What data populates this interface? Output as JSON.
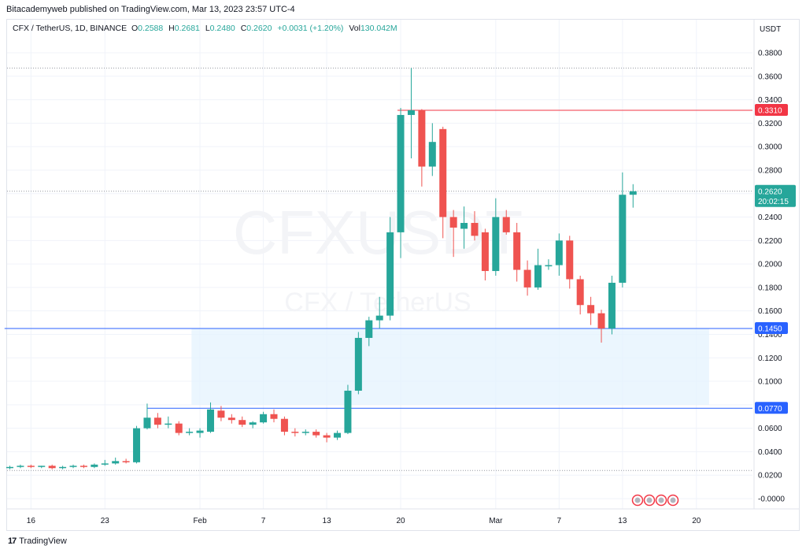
{
  "header": {
    "publisher": "Bitacademyweb published on TradingView.com, Mar 13, 2023 23:57 UTC-4"
  },
  "legend": {
    "symbol": "CFX / TetherUS, 1D, BINANCE",
    "open_label": "O",
    "open": "0.2588",
    "high_label": "H",
    "high": "0.2681",
    "low_label": "L",
    "low": "0.2480",
    "close_label": "C",
    "close": "0.2620",
    "change": "+0.0031 (+1.20%)",
    "volume_label": "Vol",
    "volume": "130.042M"
  },
  "watermark": {
    "ticker": "CFXUSDT",
    "name": "CFX / TetherUS"
  },
  "footer": {
    "brand": "TradingView",
    "logo_icon": "tradingview-logo-icon"
  },
  "colors": {
    "up": "#26a69a",
    "down": "#ef5350",
    "resistance": "#f23645",
    "support": "#2962ff",
    "zone": "#e3f2fd",
    "grid": "#f0f3fa"
  },
  "chart_data": {
    "type": "candlestick",
    "currency": "USDT",
    "ylim": [
      -0.01,
      0.39
    ],
    "y_ticks": [
      "0.3800",
      "0.3600",
      "0.3400",
      "0.3200",
      "0.3000",
      "0.2800",
      "0.2600",
      "0.2400",
      "0.2200",
      "0.2000",
      "0.1800",
      "0.1600",
      "0.1400",
      "0.1200",
      "0.1000",
      "0.0800",
      "0.0600",
      "0.0400",
      "0.0200",
      "-0.0000"
    ],
    "y_tick_values": [
      0.38,
      0.36,
      0.34,
      0.32,
      0.3,
      0.28,
      0.26,
      0.24,
      0.22,
      0.2,
      0.18,
      0.16,
      0.14,
      0.12,
      0.1,
      0.08,
      0.06,
      0.04,
      0.02,
      0.0
    ],
    "x_ticks": [
      {
        "label": "16",
        "index": 2
      },
      {
        "label": "23",
        "index": 9
      },
      {
        "label": "Feb",
        "index": 18
      },
      {
        "label": "7",
        "index": 24
      },
      {
        "label": "13",
        "index": 30
      },
      {
        "label": "20",
        "index": 37
      },
      {
        "label": "Mar",
        "index": 46
      },
      {
        "label": "7",
        "index": 52
      },
      {
        "label": "13",
        "index": 58
      },
      {
        "label": "20",
        "index": 65
      }
    ],
    "candles": [
      {
        "o": 0.026,
        "h": 0.028,
        "l": 0.025,
        "c": 0.027
      },
      {
        "o": 0.027,
        "h": 0.029,
        "l": 0.026,
        "c": 0.028
      },
      {
        "o": 0.028,
        "h": 0.029,
        "l": 0.026,
        "c": 0.027
      },
      {
        "o": 0.027,
        "h": 0.028,
        "l": 0.026,
        "c": 0.028
      },
      {
        "o": 0.028,
        "h": 0.029,
        "l": 0.025,
        "c": 0.026
      },
      {
        "o": 0.026,
        "h": 0.028,
        "l": 0.025,
        "c": 0.027
      },
      {
        "o": 0.027,
        "h": 0.029,
        "l": 0.026,
        "c": 0.028
      },
      {
        "o": 0.028,
        "h": 0.029,
        "l": 0.026,
        "c": 0.027
      },
      {
        "o": 0.027,
        "h": 0.03,
        "l": 0.026,
        "c": 0.029
      },
      {
        "o": 0.029,
        "h": 0.033,
        "l": 0.028,
        "c": 0.03
      },
      {
        "o": 0.03,
        "h": 0.035,
        "l": 0.029,
        "c": 0.032
      },
      {
        "o": 0.032,
        "h": 0.034,
        "l": 0.03,
        "c": 0.031
      },
      {
        "o": 0.031,
        "h": 0.062,
        "l": 0.03,
        "c": 0.06
      },
      {
        "o": 0.06,
        "h": 0.081,
        "l": 0.059,
        "c": 0.069
      },
      {
        "o": 0.069,
        "h": 0.073,
        "l": 0.06,
        "c": 0.063
      },
      {
        "o": 0.063,
        "h": 0.07,
        "l": 0.06,
        "c": 0.064
      },
      {
        "o": 0.064,
        "h": 0.066,
        "l": 0.054,
        "c": 0.056
      },
      {
        "o": 0.056,
        "h": 0.06,
        "l": 0.054,
        "c": 0.057
      },
      {
        "o": 0.056,
        "h": 0.06,
        "l": 0.052,
        "c": 0.058
      },
      {
        "o": 0.057,
        "h": 0.082,
        "l": 0.056,
        "c": 0.076
      },
      {
        "o": 0.075,
        "h": 0.079,
        "l": 0.066,
        "c": 0.069
      },
      {
        "o": 0.069,
        "h": 0.072,
        "l": 0.064,
        "c": 0.067
      },
      {
        "o": 0.067,
        "h": 0.07,
        "l": 0.061,
        "c": 0.063
      },
      {
        "o": 0.063,
        "h": 0.066,
        "l": 0.06,
        "c": 0.065
      },
      {
        "o": 0.065,
        "h": 0.074,
        "l": 0.064,
        "c": 0.072
      },
      {
        "o": 0.072,
        "h": 0.076,
        "l": 0.065,
        "c": 0.068
      },
      {
        "o": 0.068,
        "h": 0.07,
        "l": 0.054,
        "c": 0.057
      },
      {
        "o": 0.057,
        "h": 0.06,
        "l": 0.053,
        "c": 0.056
      },
      {
        "o": 0.056,
        "h": 0.059,
        "l": 0.054,
        "c": 0.057
      },
      {
        "o": 0.057,
        "h": 0.059,
        "l": 0.052,
        "c": 0.054
      },
      {
        "o": 0.054,
        "h": 0.056,
        "l": 0.048,
        "c": 0.052
      },
      {
        "o": 0.052,
        "h": 0.058,
        "l": 0.05,
        "c": 0.056
      },
      {
        "o": 0.056,
        "h": 0.097,
        "l": 0.055,
        "c": 0.092
      },
      {
        "o": 0.092,
        "h": 0.142,
        "l": 0.089,
        "c": 0.137
      },
      {
        "o": 0.137,
        "h": 0.155,
        "l": 0.13,
        "c": 0.152
      },
      {
        "o": 0.152,
        "h": 0.172,
        "l": 0.145,
        "c": 0.156
      },
      {
        "o": 0.156,
        "h": 0.24,
        "l": 0.152,
        "c": 0.227
      },
      {
        "o": 0.227,
        "h": 0.333,
        "l": 0.205,
        "c": 0.327
      },
      {
        "o": 0.327,
        "h": 0.367,
        "l": 0.29,
        "c": 0.331
      },
      {
        "o": 0.331,
        "h": 0.332,
        "l": 0.266,
        "c": 0.283
      },
      {
        "o": 0.283,
        "h": 0.32,
        "l": 0.275,
        "c": 0.304
      },
      {
        "o": 0.315,
        "h": 0.317,
        "l": 0.222,
        "c": 0.24
      },
      {
        "o": 0.24,
        "h": 0.246,
        "l": 0.206,
        "c": 0.231
      },
      {
        "o": 0.23,
        "h": 0.249,
        "l": 0.213,
        "c": 0.235
      },
      {
        "o": 0.235,
        "h": 0.245,
        "l": 0.22,
        "c": 0.224
      },
      {
        "o": 0.227,
        "h": 0.23,
        "l": 0.186,
        "c": 0.194
      },
      {
        "o": 0.194,
        "h": 0.256,
        "l": 0.19,
        "c": 0.24
      },
      {
        "o": 0.24,
        "h": 0.246,
        "l": 0.225,
        "c": 0.227
      },
      {
        "o": 0.227,
        "h": 0.235,
        "l": 0.185,
        "c": 0.195
      },
      {
        "o": 0.195,
        "h": 0.203,
        "l": 0.173,
        "c": 0.18
      },
      {
        "o": 0.18,
        "h": 0.213,
        "l": 0.178,
        "c": 0.199
      },
      {
        "o": 0.198,
        "h": 0.204,
        "l": 0.195,
        "c": 0.199
      },
      {
        "o": 0.199,
        "h": 0.226,
        "l": 0.19,
        "c": 0.22
      },
      {
        "o": 0.22,
        "h": 0.224,
        "l": 0.179,
        "c": 0.187
      },
      {
        "o": 0.187,
        "h": 0.19,
        "l": 0.157,
        "c": 0.165
      },
      {
        "o": 0.165,
        "h": 0.172,
        "l": 0.148,
        "c": 0.158
      },
      {
        "o": 0.158,
        "h": 0.161,
        "l": 0.133,
        "c": 0.145
      },
      {
        "o": 0.145,
        "h": 0.19,
        "l": 0.14,
        "c": 0.184
      },
      {
        "o": 0.184,
        "h": 0.278,
        "l": 0.18,
        "c": 0.259
      },
      {
        "o": 0.259,
        "h": 0.268,
        "l": 0.248,
        "c": 0.262
      }
    ],
    "lines": [
      {
        "name": "resistance",
        "value": 0.331,
        "label": "0.3310",
        "from_index": 36.7
      },
      {
        "name": "support-high",
        "value": 0.145,
        "label": "0.1450",
        "from_index": -0.5
      },
      {
        "name": "support-low",
        "value": 0.077,
        "label": "0.0770",
        "from_index": 13
      }
    ],
    "zone": {
      "from_index": 17.2,
      "to_index": 66.2,
      "top": 0.145,
      "bottom": 0.08
    },
    "last_price": {
      "value": 0.262,
      "label": "0.2620",
      "countdown": "20:02:15"
    },
    "dotted_levels": [
      0.367,
      0.262,
      0.024
    ],
    "pane_badge": "economic-events-flags"
  }
}
